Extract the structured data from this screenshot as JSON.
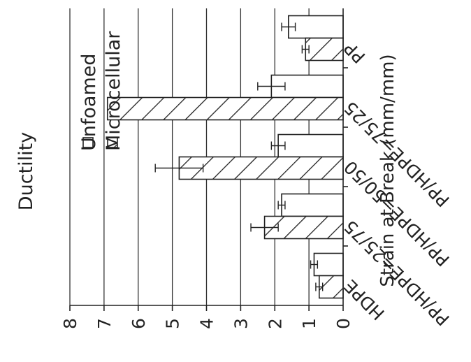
{
  "chart_data": {
    "type": "bar",
    "orientation": "rotated-90-ccw",
    "title": "Ductility",
    "ylabel": "Strain at Break (mm/mm)",
    "xlabel": "",
    "ylim": [
      0,
      8
    ],
    "yticks": [
      "0",
      "1",
      "2",
      "3",
      "4",
      "5",
      "6",
      "7",
      "8"
    ],
    "grid": true,
    "legend_position": "top-left",
    "categories": [
      "PP",
      "PP/HDPE=75/25",
      "PP/HDPE=50/50",
      "PP/HDPE=25/75",
      "HDPE"
    ],
    "series": [
      {
        "name": "Unfoamed",
        "pattern": "solid",
        "values": [
          1.6,
          2.1,
          1.9,
          1.8,
          0.85
        ],
        "errors": [
          0.2,
          0.4,
          0.2,
          0.1,
          0.1
        ]
      },
      {
        "name": "Microcellular",
        "pattern": "hatched",
        "values": [
          1.1,
          6.9,
          4.8,
          2.3,
          0.7
        ],
        "errors": [
          0.1,
          0.0,
          0.7,
          0.4,
          0.1
        ]
      }
    ]
  }
}
